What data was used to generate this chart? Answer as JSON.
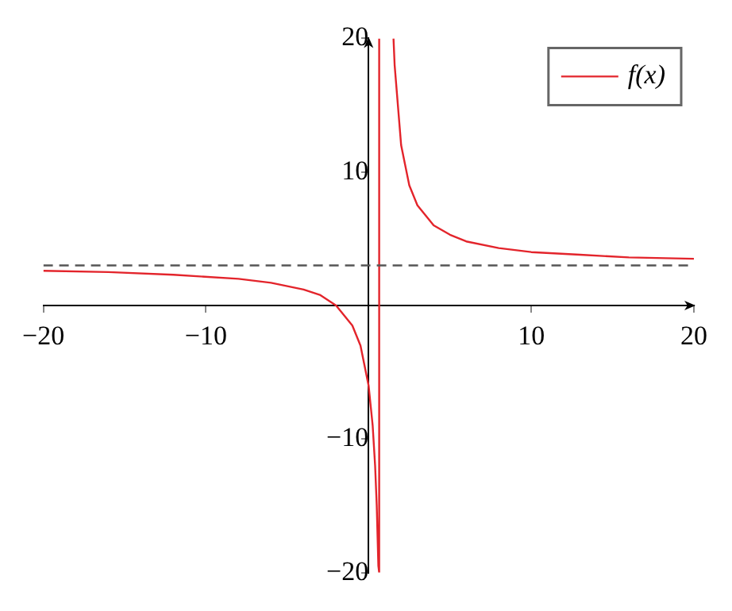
{
  "chart_data": {
    "type": "line",
    "xlim": [
      -20,
      20
    ],
    "ylim": [
      -20,
      20
    ],
    "xticks": [
      -20,
      -10,
      10,
      20
    ],
    "yticks": [
      -20,
      -10,
      10,
      20
    ],
    "grid": false,
    "legend": "top right",
    "line_style": "solid",
    "series": [
      {
        "name": "f(x)",
        "color": "#e3242b",
        "x": [
          -20,
          -16,
          -12,
          -8,
          -6,
          -4,
          -3,
          -2,
          -1,
          -0.5,
          0,
          0.25,
          0.4,
          0.5,
          0.6,
          0.65,
          0.65,
          1,
          1.53,
          1.6,
          2,
          2.5,
          3,
          4,
          5,
          6,
          8,
          10,
          13,
          16,
          20
        ],
        "values": [
          2.6,
          2.5,
          2.3,
          2.0,
          1.7,
          1.2,
          0.8,
          0,
          -1.5,
          -3,
          -6,
          -9,
          -12,
          -15,
          -19.5,
          -20,
          20,
          null,
          20,
          18,
          12,
          9,
          7.5,
          6,
          5.3,
          4.8,
          4.3,
          4,
          3.8,
          3.6,
          3.5
        ]
      }
    ],
    "ref_lines": [
      {
        "axis": "y",
        "value": 3,
        "color": "#555555",
        "line_style": "dashed"
      }
    ]
  }
}
